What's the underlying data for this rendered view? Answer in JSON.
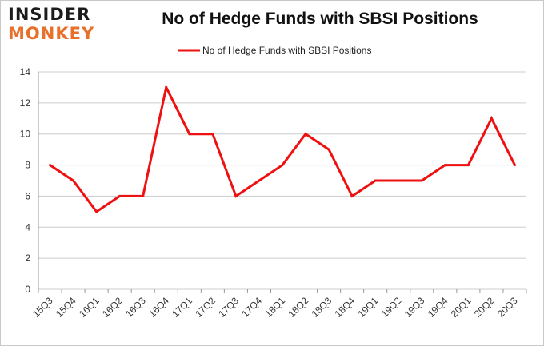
{
  "logo": {
    "line1": "INSIDER",
    "line2": "MONKEY"
  },
  "colors": {
    "series": "#ee1111",
    "grid": "#cccccc",
    "logo_accent": "#e8702a"
  },
  "chart_data": {
    "type": "line",
    "title": "No of Hedge Funds with SBSI Positions",
    "xlabel": "",
    "ylabel": "",
    "categories": [
      "15Q3",
      "15Q4",
      "16Q1",
      "16Q2",
      "16Q3",
      "16Q4",
      "17Q1",
      "17Q2",
      "17Q3",
      "17Q4",
      "18Q1",
      "18Q2",
      "18Q3",
      "18Q4",
      "19Q1",
      "19Q2",
      "19Q3",
      "19Q4",
      "20Q1",
      "20Q2",
      "20Q3"
    ],
    "series": [
      {
        "name": "No of Hedge Funds with SBSI Positions",
        "values": [
          8,
          7,
          5,
          6,
          6,
          13,
          10,
          10,
          6,
          7,
          8,
          10,
          9,
          6,
          7,
          7,
          7,
          8,
          8,
          11,
          8
        ]
      }
    ],
    "ylim": [
      0,
      14
    ],
    "yticks": [
      0,
      2,
      4,
      6,
      8,
      10,
      12,
      14
    ],
    "grid": true,
    "legend_position": "top-center"
  }
}
